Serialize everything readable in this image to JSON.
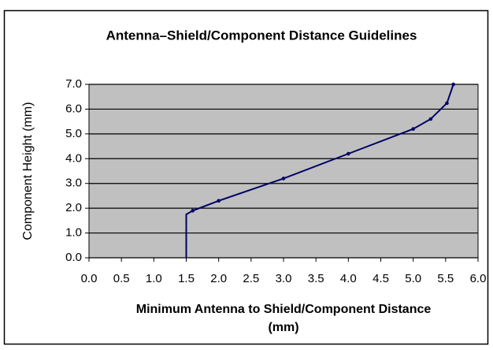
{
  "chart_data": {
    "type": "line",
    "title": "Antenna–Shield/Component Distance Guidelines",
    "x_label": [
      "Minimum Antenna to Shield/Component Distance",
      "(mm)"
    ],
    "y_label": "Component Height (mm)",
    "x": [
      1.5,
      1.5,
      1.6,
      2.0,
      3.0,
      4.0,
      5.0,
      5.27,
      5.52,
      5.62
    ],
    "series": [
      {
        "name": "Component Height",
        "color": "#000066",
        "values": [
          0,
          1.75,
          1.9,
          2.3,
          3.2,
          4.2,
          5.2,
          5.6,
          6.24,
          7.0
        ]
      }
    ],
    "xlim": [
      0,
      6
    ],
    "xticks": [
      {
        "value": 0,
        "label": "0.0"
      },
      0.5,
      {
        "value": 1,
        "label": "1.0"
      },
      1.5,
      {
        "value": 2,
        "label": "2.0"
      },
      2.5,
      {
        "value": 3,
        "label": "3.0"
      },
      3.5,
      {
        "value": 4,
        "label": "4.0"
      },
      4.5,
      {
        "value": 5,
        "label": "5.0"
      },
      5.5,
      {
        "value": 6,
        "label": "6.0"
      }
    ],
    "ylim": [
      0,
      7
    ],
    "yticks": [
      {
        "value": 0,
        "label": "0.0"
      },
      {
        "value": 1,
        "label": "1.0"
      },
      {
        "value": 2,
        "label": "2.0"
      },
      {
        "value": 3,
        "label": "3.0"
      },
      {
        "value": 4,
        "label": "4.0"
      },
      {
        "value": 5,
        "label": "5.0"
      },
      {
        "value": 6,
        "label": "6.0"
      },
      {
        "value": 7,
        "label": "7.0"
      }
    ],
    "grid": true,
    "plot_background": "#c0c0c0"
  }
}
